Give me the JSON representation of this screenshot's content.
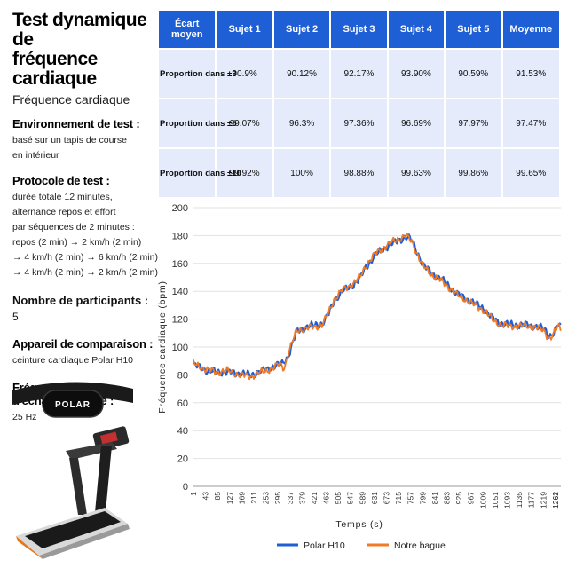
{
  "header": {
    "title_line1": "Test dynamique de",
    "title_line2": "fréquence cardiaque",
    "subtitle": "Fréquence cardiaque"
  },
  "info": {
    "env_heading": "Environnement de test :",
    "env_lines": [
      "basé sur un tapis de course",
      "en intérieur"
    ],
    "protocol_heading": "Protocole de test :",
    "protocol_lines": [
      "durée totale 12 minutes,",
      "alternance repos et effort",
      "par séquences de 2 minutes :",
      "repos (2 min) → 2 km/h (2 min)",
      "→ 4 km/h (2 min) → 6 km/h (2 min)",
      "→ 4 km/h (2 min) → 2 km/h (2 min)"
    ],
    "participants_heading": "Nombre de participants :",
    "participants_value": "5",
    "device_heading": "Appareil de comparaison :",
    "device_value": "ceinture cardiaque Polar H10",
    "sampling_heading": "Fréquence d'échantillonnage :",
    "sampling_value": "25 Hz"
  },
  "illustrations": {
    "belt_brand": "POLAR"
  },
  "table": {
    "headers": [
      "Écart moyen",
      "Sujet 1",
      "Sujet 2",
      "Sujet 3",
      "Sujet 4",
      "Sujet 5",
      "Moyenne"
    ],
    "rows": [
      [
        "Proportion dans ±3",
        "90.9%",
        "90.12%",
        "92.17%",
        "93.90%",
        "90.59%",
        "91.53%"
      ],
      [
        "Proportion dans ±5",
        "99.07%",
        "96.3%",
        "97.36%",
        "96.69%",
        "97.97%",
        "97.47%"
      ],
      [
        "Proportion dans ±10",
        "99.92%",
        "100%",
        "98.88%",
        "99.63%",
        "99.86%",
        "99.65%"
      ]
    ]
  },
  "chart_data": {
    "type": "line",
    "title": "",
    "xlabel": "Temps (s)",
    "ylabel": "Fréquence cardiaque (bpm)",
    "ylim": [
      0,
      200
    ],
    "yticks": [
      0,
      20,
      40,
      60,
      80,
      100,
      120,
      140,
      160,
      180,
      200
    ],
    "xlim": [
      1,
      1280
    ],
    "xticks": [
      1,
      43,
      85,
      127,
      169,
      211,
      253,
      295,
      337,
      379,
      421,
      463,
      505,
      547,
      589,
      631,
      673,
      715,
      757,
      799,
      841,
      883,
      925,
      967,
      1009,
      1051,
      1093,
      1135,
      1177,
      1219,
      1261,
      1262
    ],
    "grid": "horizontal",
    "legend_position": "bottom",
    "series": [
      {
        "name": "Polar H10",
        "color": "#1f5fd6",
        "points": [
          [
            1,
            87
          ],
          [
            20,
            86
          ],
          [
            45,
            83
          ],
          [
            80,
            82
          ],
          [
            120,
            82
          ],
          [
            160,
            81
          ],
          [
            200,
            80
          ],
          [
            240,
            83
          ],
          [
            280,
            86
          ],
          [
            310,
            88
          ],
          [
            330,
            93
          ],
          [
            345,
            102
          ],
          [
            360,
            111
          ],
          [
            390,
            114
          ],
          [
            430,
            116
          ],
          [
            450,
            117
          ],
          [
            470,
            123
          ],
          [
            490,
            133
          ],
          [
            520,
            140
          ],
          [
            560,
            145
          ],
          [
            580,
            149
          ],
          [
            600,
            157
          ],
          [
            630,
            165
          ],
          [
            660,
            170
          ],
          [
            690,
            174
          ],
          [
            720,
            177
          ],
          [
            740,
            179
          ],
          [
            760,
            177
          ],
          [
            780,
            168
          ],
          [
            800,
            159
          ],
          [
            830,
            153
          ],
          [
            860,
            149
          ],
          [
            890,
            144
          ],
          [
            920,
            138
          ],
          [
            950,
            135
          ],
          [
            980,
            131
          ],
          [
            1010,
            128
          ],
          [
            1040,
            121
          ],
          [
            1070,
            117
          ],
          [
            1100,
            116
          ],
          [
            1130,
            116
          ],
          [
            1160,
            116
          ],
          [
            1190,
            115
          ],
          [
            1220,
            113
          ],
          [
            1240,
            108
          ],
          [
            1255,
            110
          ],
          [
            1270,
            116
          ],
          [
            1280,
            114
          ]
        ]
      },
      {
        "name": "Notre bague",
        "color": "#f07a26",
        "points": [
          [
            1,
            88
          ],
          [
            20,
            86
          ],
          [
            45,
            84
          ],
          [
            80,
            82
          ],
          [
            120,
            83
          ],
          [
            160,
            80
          ],
          [
            200,
            79
          ],
          [
            240,
            82
          ],
          [
            280,
            85
          ],
          [
            300,
            88
          ],
          [
            318,
            85
          ],
          [
            330,
            95
          ],
          [
            345,
            103
          ],
          [
            360,
            112
          ],
          [
            390,
            113
          ],
          [
            430,
            115
          ],
          [
            450,
            116
          ],
          [
            470,
            124
          ],
          [
            490,
            134
          ],
          [
            520,
            141
          ],
          [
            560,
            146
          ],
          [
            580,
            150
          ],
          [
            600,
            158
          ],
          [
            630,
            166
          ],
          [
            660,
            171
          ],
          [
            690,
            175
          ],
          [
            720,
            178
          ],
          [
            740,
            180
          ],
          [
            760,
            176
          ],
          [
            780,
            167
          ],
          [
            800,
            158
          ],
          [
            830,
            152
          ],
          [
            860,
            148
          ],
          [
            890,
            143
          ],
          [
            920,
            137
          ],
          [
            950,
            134
          ],
          [
            980,
            130
          ],
          [
            1010,
            127
          ],
          [
            1040,
            120
          ],
          [
            1070,
            116
          ],
          [
            1100,
            115
          ],
          [
            1130,
            115
          ],
          [
            1160,
            115
          ],
          [
            1190,
            114
          ],
          [
            1220,
            112
          ],
          [
            1240,
            106
          ],
          [
            1255,
            109
          ],
          [
            1270,
            115
          ],
          [
            1280,
            113
          ]
        ]
      }
    ]
  }
}
